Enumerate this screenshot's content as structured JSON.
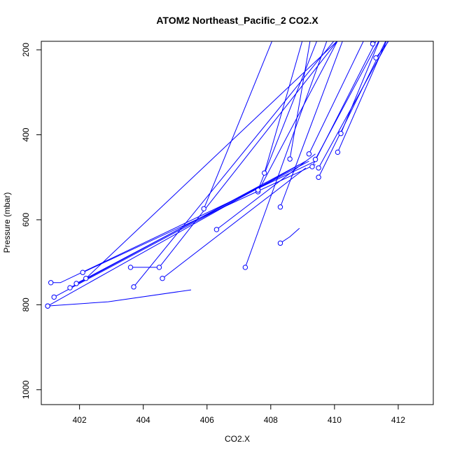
{
  "chart_data": {
    "type": "line",
    "title": "ATOM2 Northeast_Pacific_2 CO2.X",
    "xlabel": "CO2.X",
    "ylabel": "Pressure (mbar)",
    "xlim": [
      400.8,
      413.1
    ],
    "ylim": [
      1035,
      180
    ],
    "x_ticks": [
      402,
      404,
      406,
      408,
      410,
      412
    ],
    "y_ticks": [
      200,
      400,
      600,
      800,
      1000
    ],
    "grid": false,
    "legend": "none",
    "series": [
      {
        "points": [
          [
            401.1,
            748
          ],
          [
            401.4,
            748
          ],
          [
            409.4,
            462
          ]
        ]
      },
      {
        "points": [
          [
            401.0,
            803
          ],
          [
            401.0,
            803
          ],
          [
            402.9,
            793
          ],
          [
            405.5,
            765
          ]
        ]
      },
      {
        "points": [
          [
            401.2,
            782
          ],
          [
            409.2,
            462
          ]
        ]
      },
      {
        "points": [
          [
            401.7,
            760
          ],
          [
            408.9,
            470
          ]
        ]
      },
      {
        "points": [
          [
            401.9,
            750
          ],
          [
            407.7,
            520
          ]
        ]
      },
      {
        "points": [
          [
            402.1,
            724
          ],
          [
            409.4,
            470
          ]
        ]
      },
      {
        "points": [
          [
            402.2,
            738
          ],
          [
            410.5,
            150
          ]
        ]
      },
      {
        "points": [
          [
            403.6,
            712
          ],
          [
            404.5,
            712
          ]
        ]
      },
      {
        "points": [
          [
            403.7,
            758
          ],
          [
            410.3,
            150
          ]
        ]
      },
      {
        "points": [
          [
            404.5,
            712
          ],
          [
            410.4,
            150
          ]
        ]
      },
      {
        "points": [
          [
            404.6,
            738
          ],
          [
            409.1,
            478
          ]
        ]
      },
      {
        "points": [
          [
            405.9,
            574
          ],
          [
            408.2,
            150
          ]
        ]
      },
      {
        "points": [
          [
            406.3,
            623
          ],
          [
            409.4,
            445
          ]
        ]
      },
      {
        "points": [
          [
            407.2,
            712
          ],
          [
            409.9,
            150
          ]
        ]
      },
      {
        "points": [
          [
            407.6,
            534
          ],
          [
            410.3,
            150
          ]
        ]
      },
      {
        "points": [
          [
            407.6,
            530
          ],
          [
            409.6,
            150
          ]
        ]
      },
      {
        "points": [
          [
            407.8,
            490
          ],
          [
            409.1,
            150
          ]
        ]
      },
      {
        "points": [
          [
            408.3,
            570
          ],
          [
            410.4,
            150
          ]
        ]
      },
      {
        "points": [
          [
            408.3,
            655
          ],
          [
            408.6,
            640
          ],
          [
            408.9,
            620
          ]
        ]
      },
      {
        "points": [
          [
            408.6,
            457
          ],
          [
            409.3,
            150
          ]
        ]
      },
      {
        "points": [
          [
            409.2,
            445
          ],
          [
            411.1,
            150
          ]
        ]
      },
      {
        "points": [
          [
            409.3,
            475
          ],
          [
            411.3,
            180
          ]
        ]
      },
      {
        "points": [
          [
            409.4,
            458
          ],
          [
            411.6,
            150
          ]
        ]
      },
      {
        "points": [
          [
            409.5,
            500
          ],
          [
            411.8,
            150
          ]
        ]
      },
      {
        "points": [
          [
            409.5,
            478
          ],
          [
            411.9,
            150
          ]
        ]
      },
      {
        "points": [
          [
            410.2,
            397
          ],
          [
            411.4,
            180
          ]
        ]
      },
      {
        "points": [
          [
            410.1,
            441
          ],
          [
            411.8,
            150
          ]
        ]
      },
      {
        "points": [
          [
            411.2,
            186
          ],
          [
            410.8,
            150
          ]
        ]
      },
      {
        "points": [
          [
            411.3,
            219
          ],
          [
            412.0,
            150
          ]
        ]
      },
      {
        "points": [
          [
            401.0,
            803
          ],
          [
            409.1,
            462
          ]
        ]
      }
    ]
  }
}
